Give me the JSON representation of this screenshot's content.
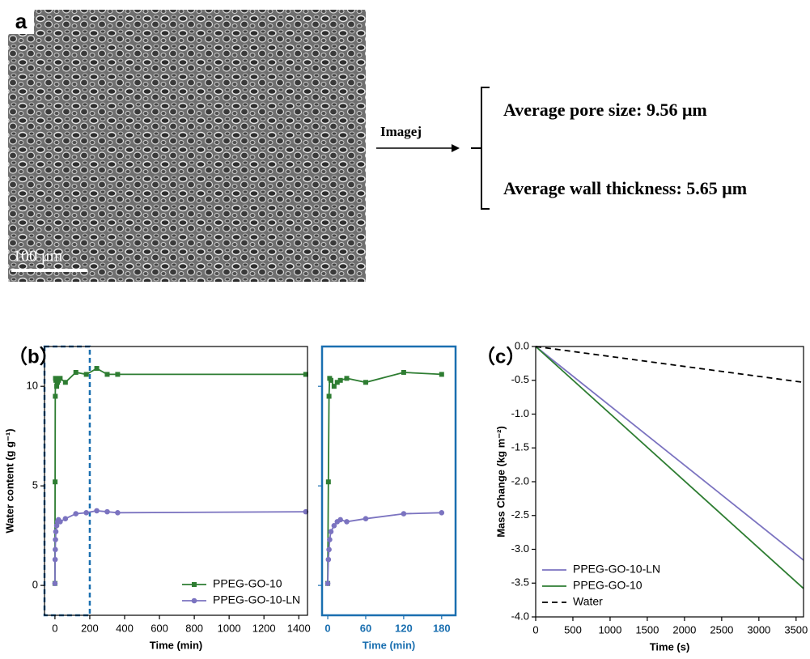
{
  "panel_a": {
    "label": "a",
    "scale_bar": "100 μm",
    "arrow_label": "Imagej",
    "results": [
      "Average pore size: 9.56 μm",
      "Average wall thickness: 5.65 μm"
    ]
  },
  "chart_data": [
    {
      "type": "line",
      "panel_label": "（b）",
      "xlabel": "Time (min)",
      "ylabel": "Water content (g g⁻¹)",
      "x": [
        0,
        1,
        2,
        3,
        5,
        10,
        15,
        20,
        30,
        60,
        120,
        180,
        240,
        300,
        360,
        1440
      ],
      "series": [
        {
          "name": "PPEG-GO-10",
          "color": "#2e7d32",
          "marker": "square",
          "values": [
            0.1,
            5.2,
            9.5,
            10.4,
            10.3,
            10.0,
            10.2,
            10.3,
            10.4,
            10.2,
            10.7,
            10.6,
            10.9,
            10.6,
            10.6,
            10.6
          ]
        },
        {
          "name": "PPEG-GO-10-LN",
          "color": "#7b73c0",
          "marker": "circle",
          "values": [
            0.1,
            1.3,
            1.8,
            2.3,
            2.7,
            3.0,
            3.2,
            3.3,
            3.2,
            3.35,
            3.6,
            3.65,
            3.75,
            3.7,
            3.65,
            3.7
          ]
        }
      ],
      "xlim": [
        -60,
        1450
      ],
      "ylim": [
        -1.5,
        12
      ],
      "xticks": [
        0,
        200,
        400,
        600,
        800,
        1000,
        1200,
        1400
      ],
      "yticks": [
        0,
        5,
        10
      ],
      "legend": "lower right",
      "highlight_xmax": 200,
      "highlight_color": "#1a6fb0"
    },
    {
      "type": "line",
      "xlabel": "Time (min)",
      "frame_color": "#1a6fb0",
      "show_ytick_labels": false,
      "x": [
        0,
        1,
        2,
        3,
        5,
        10,
        15,
        20,
        30,
        60,
        120,
        180
      ],
      "series": [
        {
          "color": "#2e7d32",
          "marker": "square",
          "values": [
            0.1,
            5.2,
            9.5,
            10.4,
            10.3,
            10.0,
            10.2,
            10.3,
            10.4,
            10.2,
            10.7,
            10.6
          ]
        },
        {
          "color": "#7b73c0",
          "marker": "circle",
          "values": [
            0.1,
            1.3,
            1.8,
            2.3,
            2.7,
            3.0,
            3.2,
            3.3,
            3.2,
            3.35,
            3.6,
            3.65
          ]
        }
      ],
      "xlim": [
        -9,
        202
      ],
      "ylim": [
        -1.5,
        12
      ],
      "xticks": [
        0,
        60,
        120,
        180
      ],
      "yticks": [
        0,
        5,
        10
      ]
    },
    {
      "type": "line",
      "panel_label": "（c）",
      "xlabel": "Time (s)",
      "ylabel": "Mass Change (kg m⁻²)",
      "x": [
        0,
        3600
      ],
      "series": [
        {
          "name": "PPEG-GO-10-LN",
          "color": "#7b73c0",
          "values": [
            0,
            -3.16
          ]
        },
        {
          "name": "PPEG-GO-10",
          "color": "#2e7d32",
          "values": [
            0,
            -3.58
          ]
        },
        {
          "name": "Water",
          "color": "#000000",
          "dash": true,
          "values": [
            0,
            -0.53
          ]
        }
      ],
      "xlim": [
        0,
        3600
      ],
      "ylim": [
        -4,
        0
      ],
      "xticks": [
        0,
        500,
        1000,
        1500,
        2000,
        2500,
        3000,
        3500
      ],
      "yticks": [
        {
          "value": 0,
          "label": "0.0"
        },
        {
          "value": -0.5,
          "label": "-0.5"
        },
        {
          "value": -1,
          "label": "-1.0"
        },
        {
          "value": -1.5,
          "label": "-1.5"
        },
        {
          "value": -2,
          "label": "-2.0"
        },
        {
          "value": -2.5,
          "label": "-2.5"
        },
        {
          "value": -3,
          "label": "-3.0"
        },
        {
          "value": -3.5,
          "label": "-3.5"
        },
        {
          "value": -4,
          "label": "-4.0"
        }
      ],
      "legend": "lower left"
    }
  ]
}
